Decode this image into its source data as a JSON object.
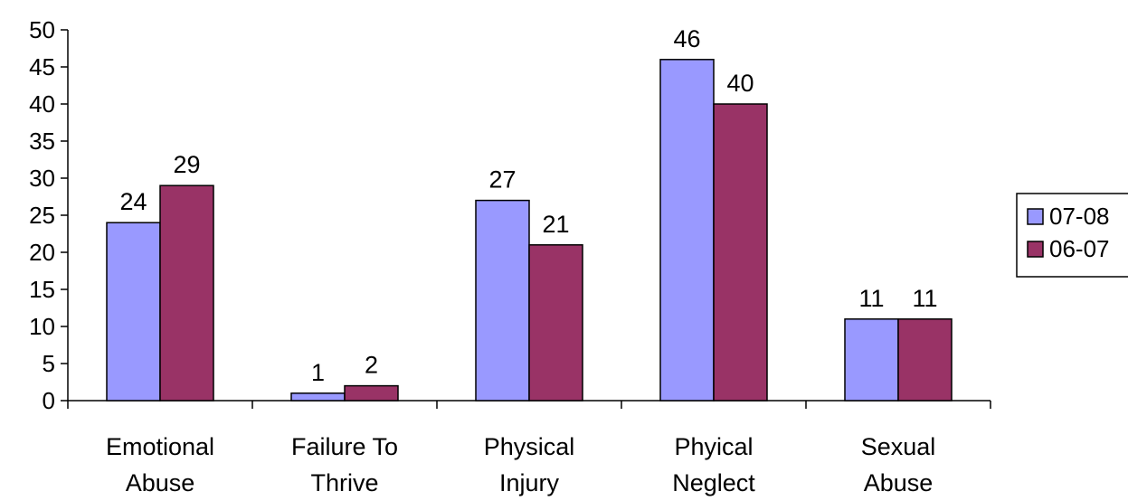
{
  "chart_data": {
    "type": "bar",
    "categories": [
      [
        "Emotional",
        "Abuse"
      ],
      [
        "Failure To",
        "Thrive"
      ],
      [
        "Physical",
        "Injury"
      ],
      [
        "Phyical",
        "Neglect"
      ],
      [
        "Sexual",
        "Abuse"
      ]
    ],
    "series": [
      {
        "name": "07-08",
        "values": [
          24,
          1,
          27,
          46,
          11
        ],
        "color": "#9999ff"
      },
      {
        "name": "06-07",
        "values": [
          29,
          2,
          21,
          40,
          11
        ],
        "color": "#993366"
      }
    ],
    "ylim": [
      0,
      50
    ],
    "yticks": [
      0,
      5,
      10,
      15,
      20,
      25,
      30,
      35,
      40,
      45,
      50
    ],
    "grid": false,
    "legend_position": "right",
    "title": "",
    "xlabel": "",
    "ylabel": ""
  }
}
